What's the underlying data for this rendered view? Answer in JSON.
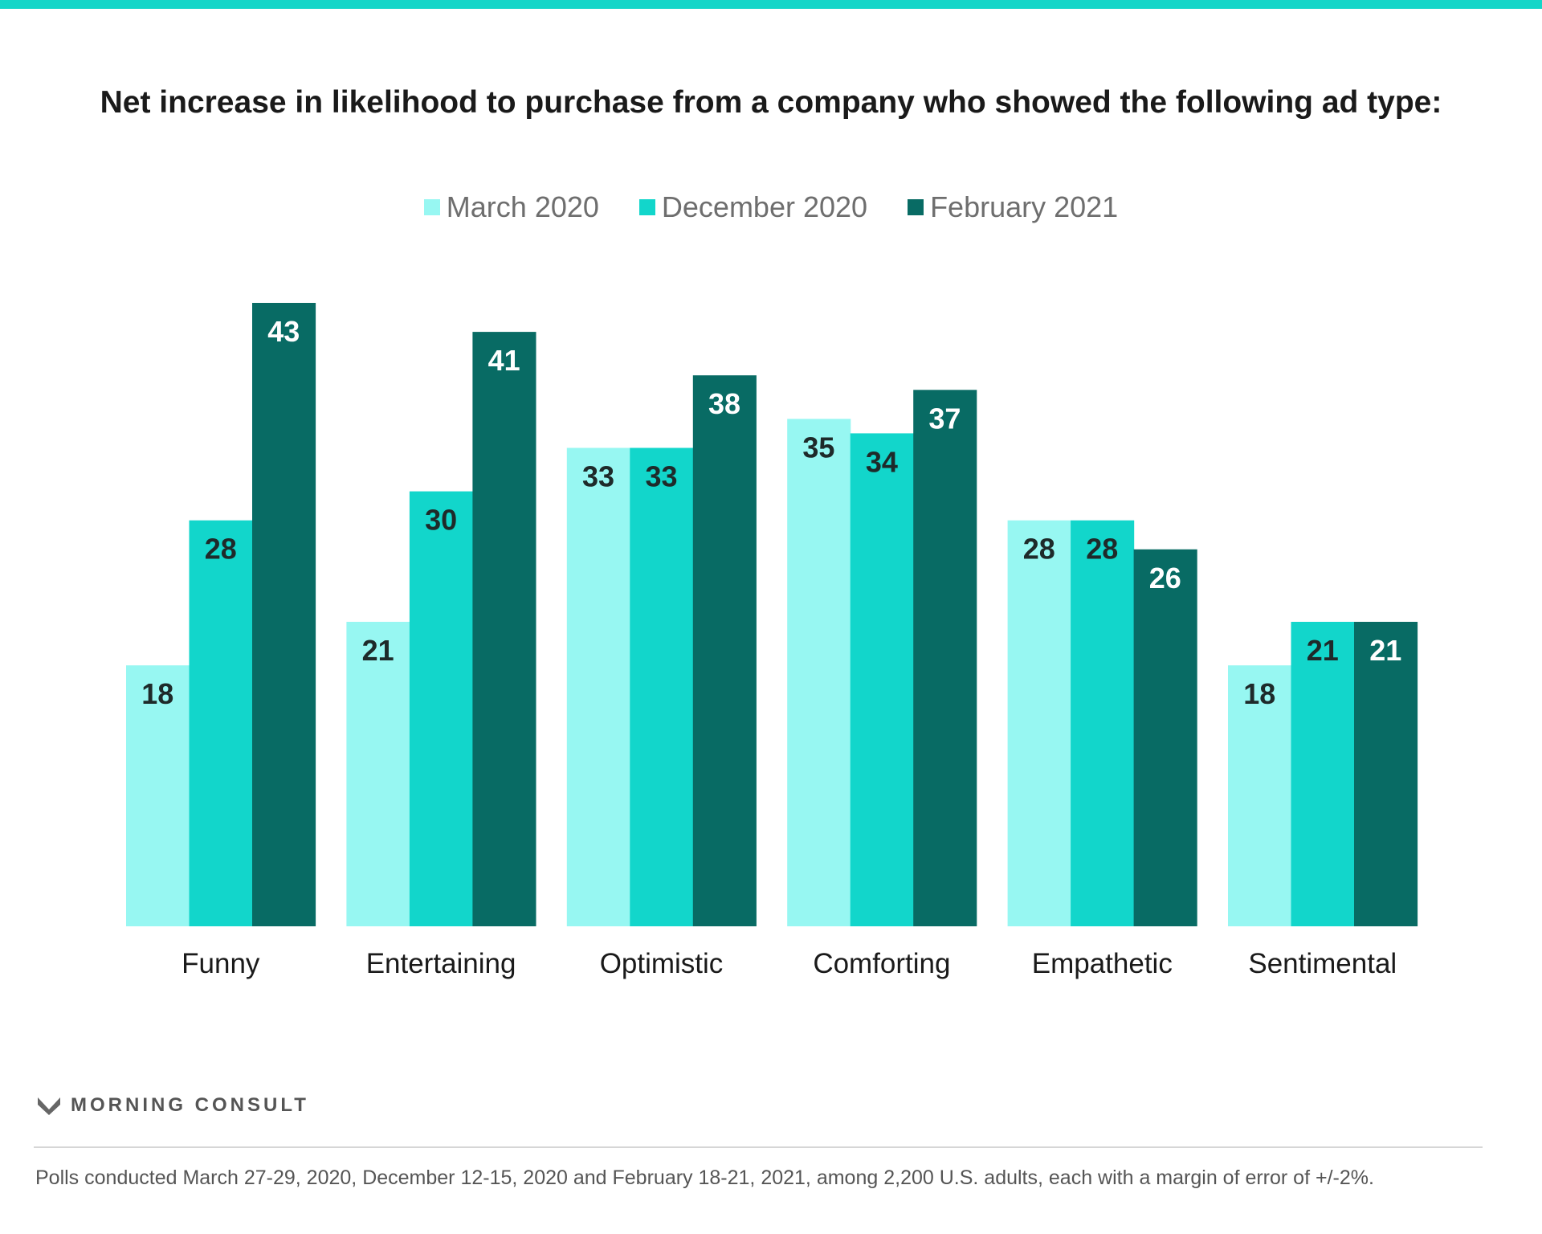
{
  "colors": {
    "accent": "#14d6c8",
    "series": [
      "#97f7f2",
      "#12d6cb",
      "#086b64"
    ],
    "label_dark": "#1e2a2a",
    "label_light": "#ffffff"
  },
  "chart_data": {
    "type": "bar",
    "title": "Net increase in likelihood to purchase from a company who showed the following ad type:",
    "categories": [
      "Funny",
      "Entertaining",
      "Optimistic",
      "Comforting",
      "Empathetic",
      "Sentimental"
    ],
    "series": [
      {
        "name": "March 2020",
        "values": [
          18,
          21,
          33,
          35,
          28,
          18
        ]
      },
      {
        "name": "December 2020",
        "values": [
          28,
          30,
          33,
          34,
          28,
          21
        ]
      },
      {
        "name": "February 2021",
        "values": [
          43,
          41,
          38,
          37,
          26,
          21
        ]
      }
    ],
    "xlabel": "",
    "ylabel": "",
    "ylim": [
      0,
      43
    ],
    "grid": false,
    "legend": "top-center"
  },
  "logo": {
    "name": "MORNING CONSULT",
    "icon": "morning-consult-m-icon"
  },
  "footnote": "Polls conducted March 27-29, 2020, December 12-15, 2020 and February 18-21, 2021, among 2,200 U.S. adults, each with a margin of error of +/-2%."
}
